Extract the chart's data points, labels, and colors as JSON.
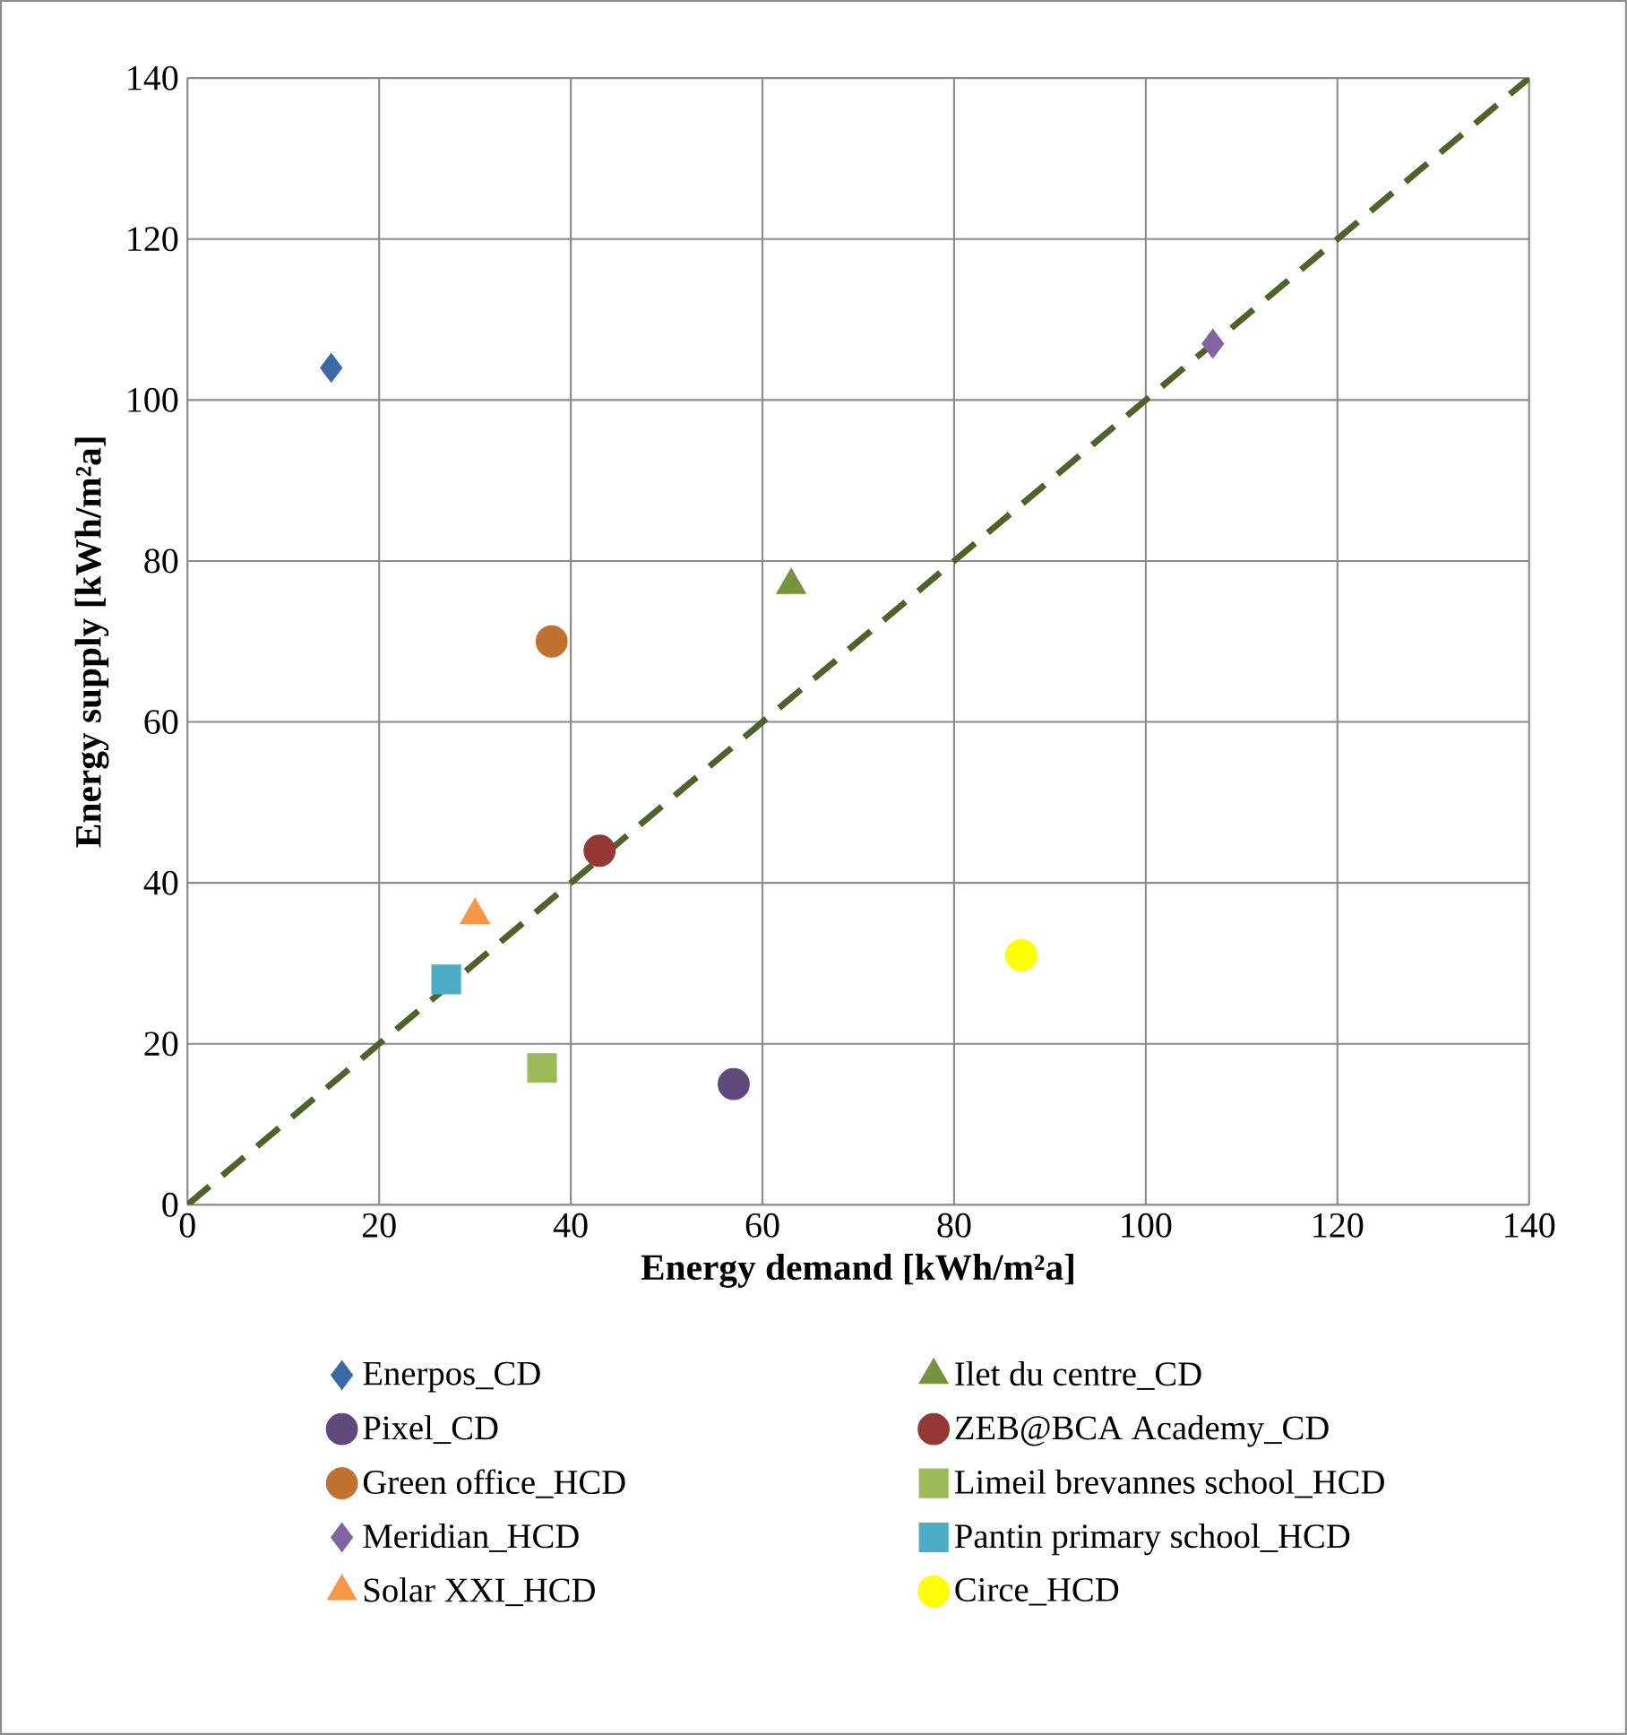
{
  "chart_data": {
    "type": "scatter",
    "xlabel": "Energy demand [kWh/m²a]",
    "ylabel": "Energy supply [kWh/m²a]",
    "xlim": [
      0,
      140
    ],
    "ylim": [
      0,
      140
    ],
    "xticks": [
      0,
      20,
      40,
      60,
      80,
      100,
      120,
      140
    ],
    "yticks": [
      0,
      20,
      40,
      60,
      80,
      100,
      120,
      140
    ],
    "grid": true,
    "legend": "bottom",
    "series": [
      {
        "name": "Enerpos_CD",
        "color": "#3a6aa6",
        "marker": "diamond",
        "x": [
          15
        ],
        "values": [
          104
        ]
      },
      {
        "name": "Ilet du centre_CD",
        "color": "#77933c",
        "marker": "triangle",
        "x": [
          63
        ],
        "values": [
          77
        ]
      },
      {
        "name": "Pixel_CD",
        "color": "#604a7b",
        "marker": "circle",
        "x": [
          57
        ],
        "values": [
          15
        ]
      },
      {
        "name": "ZEB@BCA Academy_CD",
        "color": "#953735",
        "marker": "circle",
        "x": [
          43
        ],
        "values": [
          44
        ]
      },
      {
        "name": "Green office_HCD",
        "color": "#c0722f",
        "marker": "circle",
        "x": [
          38
        ],
        "values": [
          70
        ]
      },
      {
        "name": "Limeil brevannes school_HCD",
        "color": "#9bbb59",
        "marker": "square",
        "x": [
          37
        ],
        "values": [
          17
        ]
      },
      {
        "name": "Meridian_HCD",
        "color": "#8064a2",
        "marker": "diamond",
        "x": [
          107
        ],
        "values": [
          107
        ]
      },
      {
        "name": "Pantin primary school_HCD",
        "color": "#4bacc6",
        "marker": "square",
        "x": [
          27
        ],
        "values": [
          28
        ]
      },
      {
        "name": "Solar XXI_HCD",
        "color": "#f79646",
        "marker": "triangle",
        "x": [
          30
        ],
        "values": [
          36
        ]
      },
      {
        "name": "Circe_HCD",
        "color": "#ffff00",
        "marker": "circle",
        "x": [
          87
        ],
        "values": [
          31
        ]
      },
      {
        "type": "line",
        "color": "#4f6228",
        "line_style": "dashed",
        "marker": "none",
        "x": [
          0,
          140
        ],
        "values": [
          0,
          140
        ]
      }
    ]
  }
}
